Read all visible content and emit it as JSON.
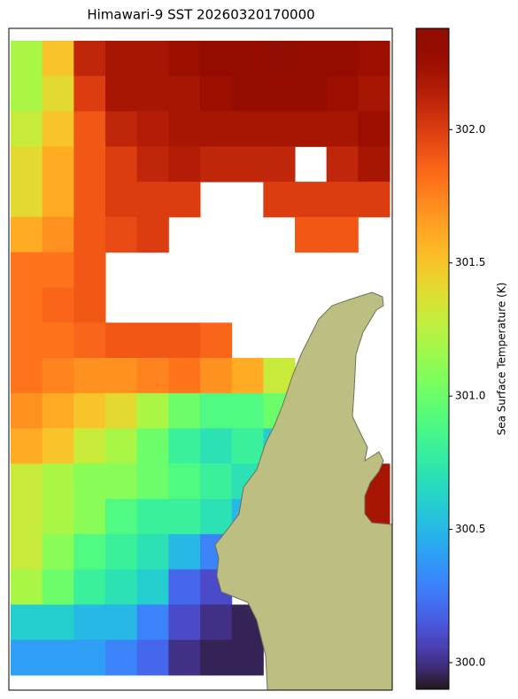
{
  "chart_data": {
    "type": "heatmap",
    "title": "Himawari-9 SST 20260320170000",
    "colorbar_label": "Sea Surface Temperature (K)",
    "colormap": "turbo",
    "clim": [
      299.9,
      302.38
    ],
    "cticks": [
      {
        "value": 300,
        "label": "300.0"
      },
      300.5,
      {
        "value": 301,
        "label": "301.0"
      },
      301.5,
      {
        "value": 302,
        "label": "302.0"
      }
    ],
    "values": [
      [
        301.2,
        301.5,
        302.1,
        302.2,
        302.2,
        302.25,
        302.3,
        302.3,
        302.35,
        302.3,
        302.3,
        302.25
      ],
      [
        301.2,
        301.4,
        302.0,
        302.2,
        302.2,
        302.2,
        302.25,
        302.3,
        302.3,
        302.3,
        302.25,
        302.2
      ],
      [
        301.3,
        301.5,
        301.9,
        302.1,
        302.15,
        302.2,
        302.2,
        302.2,
        302.2,
        302.2,
        302.2,
        302.25
      ],
      [
        301.4,
        301.6,
        301.9,
        302.0,
        302.1,
        302.15,
        302.1,
        302.1,
        302.1,
        null,
        302.1,
        302.2
      ],
      [
        301.4,
        301.6,
        301.9,
        302.0,
        302.0,
        302.0,
        null,
        null,
        302.0,
        302.0,
        302.0,
        302.0
      ],
      [
        301.6,
        301.7,
        301.9,
        301.95,
        302.0,
        null,
        null,
        null,
        null,
        301.9,
        301.9,
        null
      ],
      [
        301.8,
        301.8,
        301.9,
        null,
        null,
        null,
        null,
        null,
        null,
        null,
        null,
        null
      ],
      [
        301.8,
        301.85,
        301.9,
        null,
        null,
        null,
        null,
        null,
        null,
        null,
        null,
        null
      ],
      [
        301.8,
        301.8,
        301.85,
        301.9,
        301.9,
        301.9,
        301.85,
        null,
        null,
        null,
        null,
        null
      ],
      [
        301.8,
        301.75,
        301.7,
        301.7,
        301.75,
        301.8,
        301.7,
        301.6,
        301.3,
        null,
        null,
        null
      ],
      [
        301.7,
        301.6,
        301.5,
        301.4,
        301.2,
        301.0,
        300.9,
        300.9,
        301.0,
        null,
        null,
        null
      ],
      [
        301.6,
        301.5,
        301.3,
        301.2,
        301.0,
        300.8,
        300.7,
        300.8,
        300.6,
        null,
        null,
        null
      ],
      [
        301.3,
        301.2,
        301.1,
        301.1,
        301.0,
        300.9,
        300.8,
        300.7,
        null,
        null,
        null,
        302.2
      ],
      [
        301.3,
        301.2,
        301.1,
        300.9,
        300.8,
        300.8,
        300.7,
        300.5,
        null,
        null,
        null,
        302.2
      ],
      [
        301.3,
        301.1,
        300.9,
        300.8,
        300.7,
        300.5,
        300.3,
        null,
        null,
        null,
        null,
        null
      ],
      [
        301.2,
        301.0,
        300.8,
        300.7,
        300.6,
        300.2,
        300.1,
        null,
        null,
        null,
        null,
        null
      ],
      [
        300.6,
        300.6,
        300.5,
        300.5,
        300.3,
        300.1,
        300.0,
        299.95,
        null,
        null,
        null,
        null
      ],
      [
        300.4,
        300.4,
        300.4,
        300.3,
        300.2,
        300.0,
        299.95,
        299.95,
        null,
        null,
        null,
        null
      ]
    ]
  }
}
